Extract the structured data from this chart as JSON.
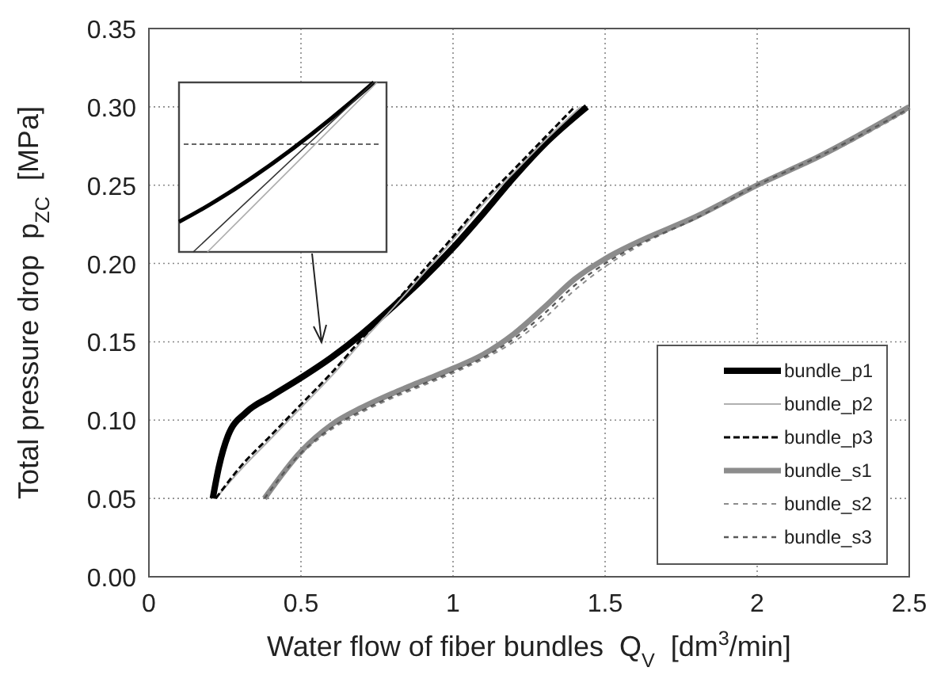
{
  "chart_data": {
    "type": "line",
    "xlabel": "Water flow of fiber bundles  Q$_{V}$  [dm$^{3}$/min]",
    "ylabel": "Total pressure drop  p$_{ZC}$  [MPa]",
    "xlim": [
      0,
      2.5
    ],
    "xticks": [
      0,
      0.5,
      1,
      1.5,
      2,
      2.5
    ],
    "ylim": [
      0,
      0.35
    ],
    "yticks": [
      {
        "value": 0,
        "label": "0.00"
      },
      {
        "value": 0.05,
        "label": "0.05"
      },
      {
        "value": 0.1,
        "label": "0.10"
      },
      {
        "value": 0.15,
        "label": "0.15"
      },
      {
        "value": 0.2,
        "label": "0.20"
      },
      {
        "value": 0.25,
        "label": "0.25"
      },
      {
        "value": 0.3,
        "label": "0.30"
      },
      {
        "value": 0.35,
        "label": "0.35"
      }
    ],
    "grid": true,
    "legend": "bottom right",
    "series": [
      {
        "name": "bundle_p1",
        "color": "#000000",
        "line_style": "solid",
        "x": [
          0.21,
          0.23,
          0.26,
          0.32,
          0.4,
          0.5,
          0.6,
          0.7,
          0.8,
          0.9,
          1.0,
          1.1,
          1.2,
          1.3,
          1.44
        ],
        "values": [
          0.05,
          0.07,
          0.09,
          0.105,
          0.115,
          0.127,
          0.14,
          0.155,
          0.172,
          0.19,
          0.21,
          0.232,
          0.255,
          0.276,
          0.3
        ]
      },
      {
        "name": "bundle_p2",
        "color": "#b0b0b0",
        "line_style": "solid",
        "x": [
          0.22,
          0.3,
          0.4,
          0.5,
          0.6,
          0.7,
          0.8,
          0.9,
          1.0,
          1.1,
          1.2,
          1.3,
          1.42
        ],
        "values": [
          0.05,
          0.068,
          0.088,
          0.108,
          0.128,
          0.15,
          0.171,
          0.193,
          0.215,
          0.238,
          0.258,
          0.278,
          0.3
        ]
      },
      {
        "name": "bundle_p3",
        "color": "#000000",
        "line_style": "dashed",
        "x": [
          0.22,
          0.3,
          0.4,
          0.5,
          0.6,
          0.7,
          0.8,
          0.9,
          1.0,
          1.1,
          1.2,
          1.3,
          1.4
        ],
        "values": [
          0.05,
          0.07,
          0.09,
          0.11,
          0.13,
          0.152,
          0.173,
          0.195,
          0.217,
          0.24,
          0.26,
          0.28,
          0.3
        ]
      },
      {
        "name": "bundle_s1",
        "color": "#8c8c8c",
        "line_style": "solid",
        "x": [
          0.38,
          0.5,
          0.6,
          0.7,
          0.8,
          0.9,
          1.0,
          1.1,
          1.2,
          1.3,
          1.4,
          1.5,
          1.6,
          1.8,
          2.0,
          2.2,
          2.5
        ],
        "values": [
          0.05,
          0.08,
          0.097,
          0.108,
          0.117,
          0.125,
          0.133,
          0.142,
          0.155,
          0.172,
          0.19,
          0.203,
          0.213,
          0.23,
          0.25,
          0.268,
          0.3
        ]
      },
      {
        "name": "bundle_s2",
        "color": "#8c8c8c",
        "line_style": "dashed",
        "x": [
          0.38,
          0.5,
          0.6,
          0.7,
          0.8,
          0.9,
          1.0,
          1.1,
          1.2,
          1.3,
          1.4,
          1.5,
          1.6,
          1.8,
          2.0,
          2.2,
          2.5
        ],
        "values": [
          0.05,
          0.078,
          0.094,
          0.105,
          0.114,
          0.122,
          0.13,
          0.139,
          0.15,
          0.165,
          0.183,
          0.198,
          0.21,
          0.229,
          0.25,
          0.267,
          0.298
        ]
      },
      {
        "name": "bundle_s3",
        "color": "#595959",
        "line_style": "dashed",
        "x": [
          0.38,
          0.5,
          0.6,
          0.7,
          0.8,
          0.9,
          1.0,
          1.1,
          1.2,
          1.3,
          1.4,
          1.5,
          1.6,
          1.8,
          2.0,
          2.2,
          2.5
        ],
        "values": [
          0.05,
          0.079,
          0.095,
          0.106,
          0.115,
          0.123,
          0.131,
          0.14,
          0.152,
          0.168,
          0.186,
          0.2,
          0.211,
          0.229,
          0.25,
          0.268,
          0.299
        ]
      }
    ]
  }
}
